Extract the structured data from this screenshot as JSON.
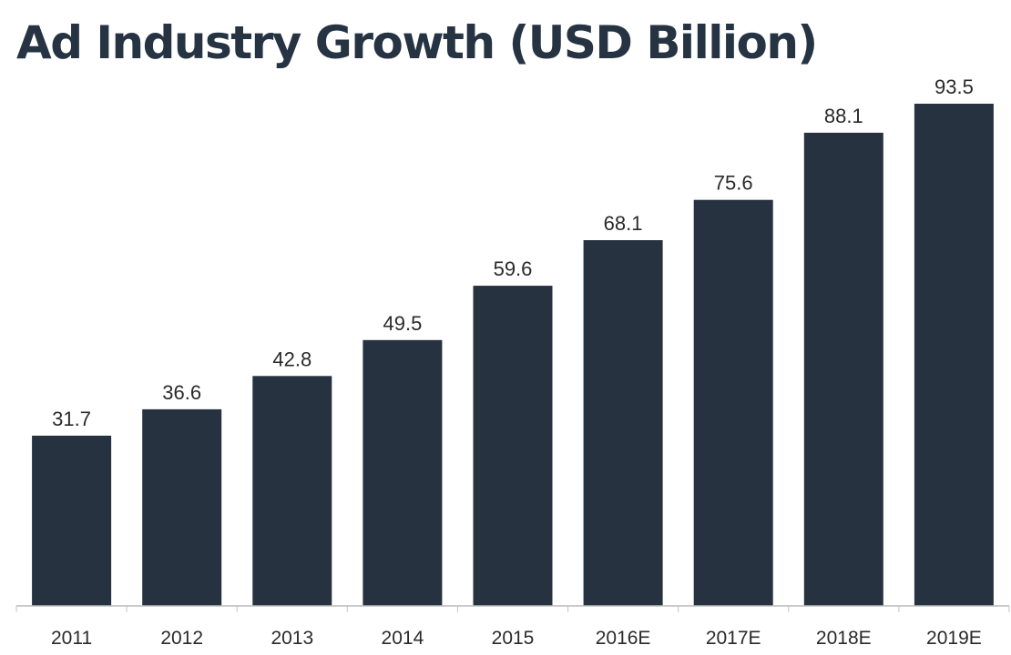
{
  "chart_data": {
    "type": "bar",
    "title": "Ad Industry Growth (USD Billion)",
    "xlabel": "",
    "ylabel": "",
    "categories": [
      "2011",
      "2012",
      "2013",
      "2014",
      "2015",
      "2016E",
      "2017E",
      "2018E",
      "2019E"
    ],
    "values": [
      31.7,
      36.6,
      42.8,
      49.5,
      59.6,
      68.1,
      75.6,
      88.1,
      93.5
    ],
    "data_labels": [
      "31.7",
      "36.6",
      "42.8",
      "49.5",
      "59.6",
      "68.1",
      "75.6",
      "88.1",
      "93.5"
    ],
    "ylim": [
      0,
      93.5
    ],
    "grid": false,
    "legend": "none",
    "bar_color": "#263240"
  }
}
